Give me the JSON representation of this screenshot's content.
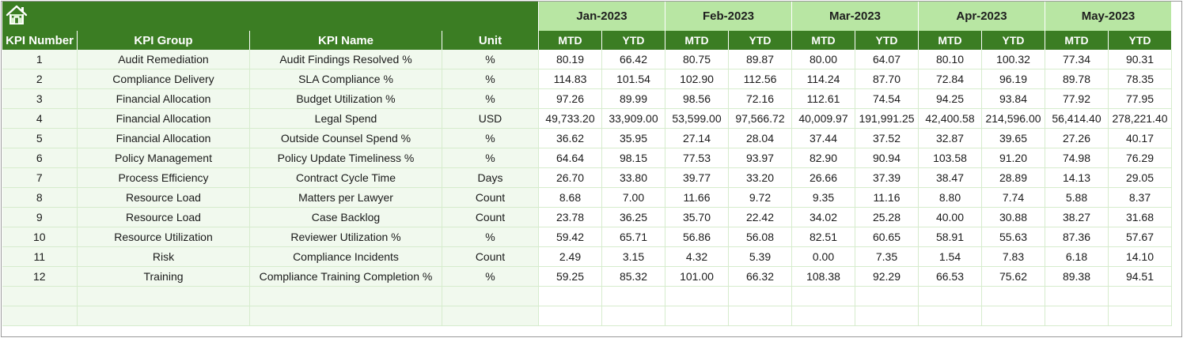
{
  "colors": {
    "dark_green": "#3b7d23",
    "light_green": "#b8e6a3",
    "row_tint": "#f1f9ee"
  },
  "home_button": {
    "icon": "home-icon"
  },
  "months": [
    "Jan-2023",
    "Feb-2023",
    "Mar-2023",
    "Apr-2023",
    "May-2023"
  ],
  "headers": {
    "kpi_number": "KPI Number",
    "kpi_group": "KPI Group",
    "kpi_name": "KPI Name",
    "unit": "Unit",
    "mtd": "MTD",
    "ytd": "YTD"
  },
  "rows": [
    {
      "num": "1",
      "group": "Audit Remediation",
      "name": "Audit Findings Resolved %",
      "unit": "%",
      "values": [
        "80.19",
        "66.42",
        "80.75",
        "89.87",
        "80.00",
        "64.07",
        "80.10",
        "100.32",
        "77.34",
        "90.31"
      ]
    },
    {
      "num": "2",
      "group": "Compliance Delivery",
      "name": "SLA Compliance %",
      "unit": "%",
      "values": [
        "114.83",
        "101.54",
        "102.90",
        "112.56",
        "114.24",
        "87.70",
        "72.84",
        "96.19",
        "89.78",
        "78.35"
      ]
    },
    {
      "num": "3",
      "group": "Financial Allocation",
      "name": "Budget Utilization %",
      "unit": "%",
      "values": [
        "97.26",
        "89.99",
        "98.56",
        "72.16",
        "112.61",
        "74.54",
        "94.25",
        "93.84",
        "77.92",
        "77.95"
      ]
    },
    {
      "num": "4",
      "group": "Financial Allocation",
      "name": "Legal Spend",
      "unit": "USD",
      "values": [
        "49,733.20",
        "33,909.00",
        "53,599.00",
        "97,566.72",
        "40,009.97",
        "191,991.25",
        "42,400.58",
        "214,596.00",
        "56,414.40",
        "278,221.40"
      ]
    },
    {
      "num": "5",
      "group": "Financial Allocation",
      "name": "Outside Counsel Spend %",
      "unit": "%",
      "values": [
        "36.62",
        "35.95",
        "27.14",
        "28.04",
        "37.44",
        "37.52",
        "32.87",
        "39.65",
        "27.26",
        "40.17"
      ]
    },
    {
      "num": "6",
      "group": "Policy Management",
      "name": "Policy Update Timeliness %",
      "unit": "%",
      "values": [
        "64.64",
        "98.15",
        "77.53",
        "93.97",
        "82.90",
        "90.94",
        "103.58",
        "91.20",
        "74.98",
        "76.29"
      ]
    },
    {
      "num": "7",
      "group": "Process Efficiency",
      "name": "Contract Cycle Time",
      "unit": "Days",
      "values": [
        "26.70",
        "33.80",
        "39.77",
        "33.20",
        "26.66",
        "37.39",
        "38.47",
        "28.89",
        "14.13",
        "29.05"
      ]
    },
    {
      "num": "8",
      "group": "Resource Load",
      "name": "Matters per Lawyer",
      "unit": "Count",
      "values": [
        "8.68",
        "7.00",
        "11.66",
        "9.72",
        "9.35",
        "11.16",
        "8.80",
        "7.74",
        "5.88",
        "8.37"
      ]
    },
    {
      "num": "9",
      "group": "Resource Load",
      "name": "Case Backlog",
      "unit": "Count",
      "values": [
        "23.78",
        "36.25",
        "35.70",
        "22.42",
        "34.02",
        "25.28",
        "40.00",
        "30.88",
        "38.27",
        "31.68"
      ]
    },
    {
      "num": "10",
      "group": "Resource Utilization",
      "name": "Reviewer Utilization %",
      "unit": "%",
      "values": [
        "59.42",
        "65.71",
        "56.86",
        "56.08",
        "82.51",
        "60.65",
        "58.91",
        "55.63",
        "87.36",
        "57.67"
      ]
    },
    {
      "num": "11",
      "group": "Risk",
      "name": "Compliance Incidents",
      "unit": "Count",
      "values": [
        "2.49",
        "3.15",
        "4.32",
        "5.39",
        "0.00",
        "7.35",
        "1.54",
        "7.83",
        "6.18",
        "14.10"
      ]
    },
    {
      "num": "12",
      "group": "Training",
      "name": "Compliance Training Completion %",
      "unit": "%",
      "values": [
        "59.25",
        "85.32",
        "101.00",
        "66.32",
        "108.38",
        "92.29",
        "66.53",
        "75.62",
        "89.38",
        "94.51"
      ]
    }
  ],
  "blank_rows": 2
}
